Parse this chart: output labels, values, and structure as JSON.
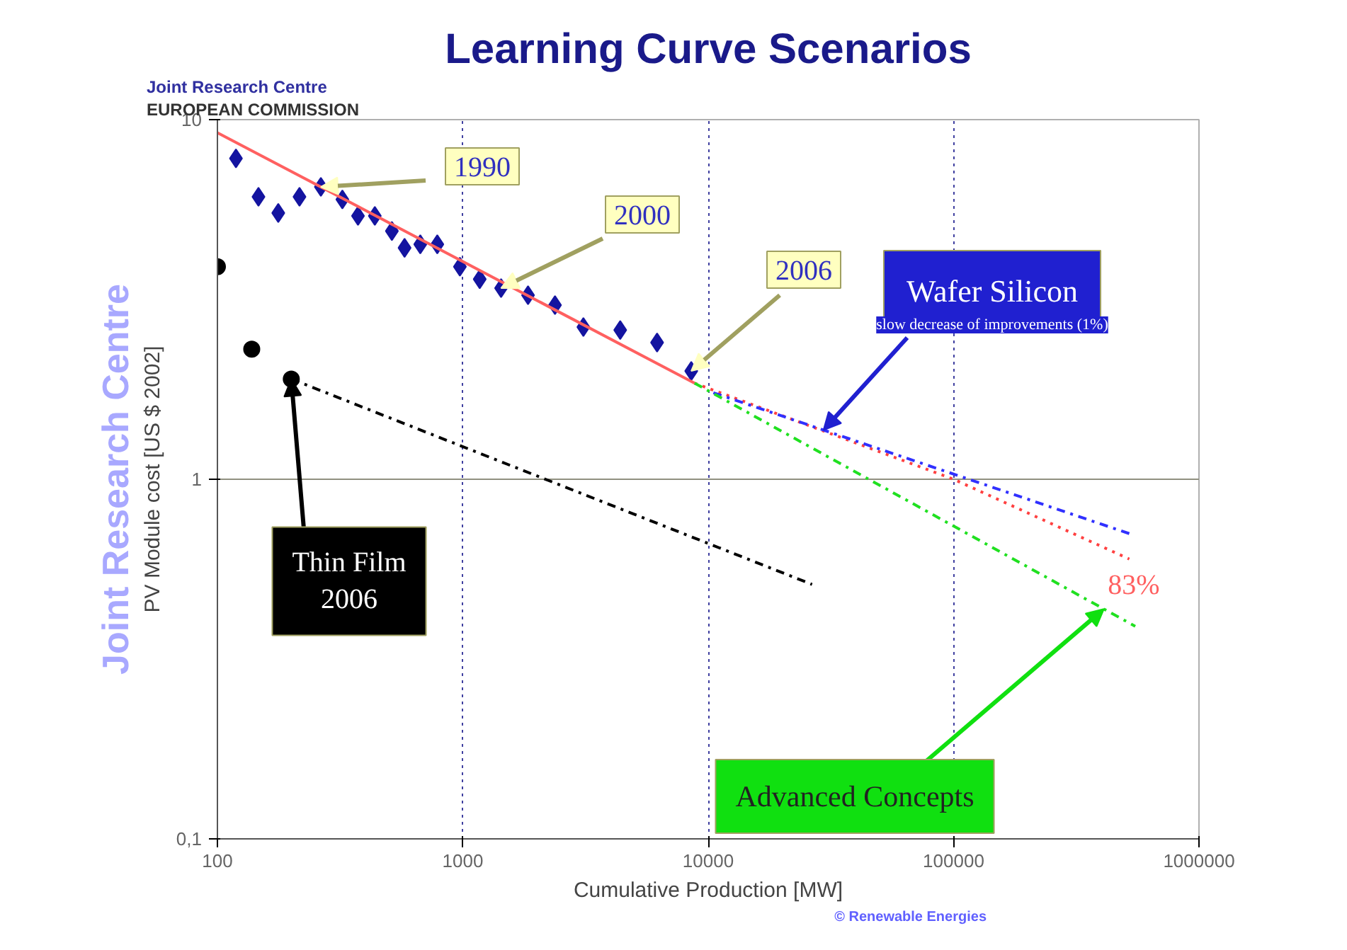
{
  "chart_data": {
    "type": "line",
    "title": "Learning Curve Scenarios",
    "xlabel": "Cumulative Production [MW]",
    "ylabel": "PV Module cost [US $ 2002]",
    "log": "xy",
    "grid": true,
    "xlim": [
      100,
      1000000
    ],
    "xticks": [
      100,
      1000,
      10000,
      100000,
      1000000
    ],
    "ylim": [
      0.1,
      10
    ],
    "yticks": [
      {
        "value": 0.1,
        "label": "0,1"
      },
      1,
      10
    ],
    "series": [
      {
        "type": "scatter",
        "marker": "diamond",
        "color": "#1414a0",
        "x": [
          119,
          147,
          177,
          216,
          264,
          323,
          374,
          438,
          514,
          579,
          671,
          787,
          973,
          1172,
          1432,
          1844,
          2375,
          3100,
          4380,
          6190,
          8530
        ],
        "values": [
          7.8,
          6.1,
          5.5,
          6.1,
          6.5,
          6.0,
          5.4,
          5.4,
          4.9,
          4.4,
          4.5,
          4.5,
          3.9,
          3.6,
          3.4,
          3.25,
          3.05,
          2.65,
          2.6,
          2.4,
          2.0
        ]
      },
      {
        "type": "scatter",
        "marker": "circle",
        "color": "#000000",
        "x": [
          100,
          138,
          200
        ],
        "values": [
          3.9,
          2.3,
          1.9
        ]
      },
      {
        "line_style": "solid",
        "color": "#ff6060",
        "x": [
          100,
          8800
        ],
        "values": [
          9.2,
          1.85
        ]
      },
      {
        "line_style": "dotted",
        "color": "#ff4040",
        "x": [
          8800,
          100000,
          520000
        ],
        "values": [
          1.85,
          1.0,
          0.6
        ]
      },
      {
        "line_style": "dashdot",
        "color": "#3030ff",
        "x": [
          10500,
          540000
        ],
        "values": [
          1.74,
          0.7
        ]
      },
      {
        "line_style": "dashdot",
        "color": "#20e020",
        "x": [
          8800,
          550000
        ],
        "values": [
          1.85,
          0.39
        ]
      },
      {
        "line_style": "dashdot",
        "color": "#000000",
        "x": [
          200,
          26500
        ],
        "values": [
          1.9,
          0.51
        ]
      }
    ],
    "annotations": [
      {
        "text": "1990",
        "x": 264,
        "y": 6.5
      },
      {
        "text": "2000",
        "x": 1432,
        "y": 3.4
      },
      {
        "text": "2006",
        "x": 8530,
        "y": 2.0
      },
      {
        "text": "Wafer Silicon",
        "x": 29500,
        "y": 1.37
      },
      "slow decrease of improvements (1%)",
      {
        "text": "Thin Film\n2006",
        "x": 200,
        "y": 1.9
      },
      {
        "text": "Advanced Concepts",
        "x": 410000,
        "y": 0.436
      },
      "83%",
      "EUROPEAN COMMISSION",
      "Joint Research Centre",
      "Joint Research Centre",
      "© Renewable Energies"
    ]
  }
}
